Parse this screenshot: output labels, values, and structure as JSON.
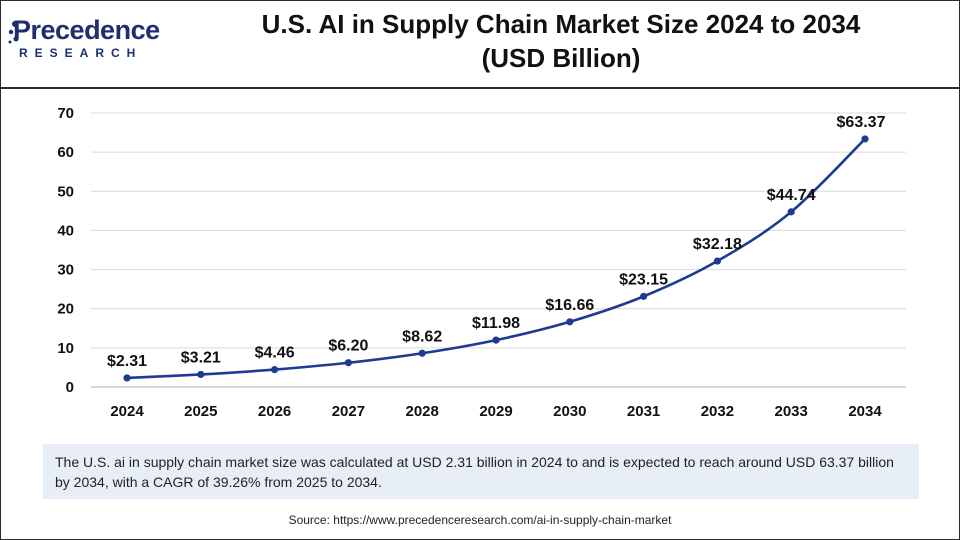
{
  "brand": {
    "name": "Precedence",
    "sub": "RESEARCH",
    "color": "#1d2f6f"
  },
  "header": {
    "title_line1": "U.S. AI in Supply Chain Market Size 2024 to 2034",
    "title_line2": "(USD Billion)"
  },
  "chart_data": {
    "type": "line",
    "title": "U.S. AI in Supply Chain Market Size 2024 to 2034 (USD Billion)",
    "xlabel": "",
    "ylabel": "",
    "categories": [
      "2024",
      "2025",
      "2026",
      "2027",
      "2028",
      "2029",
      "2030",
      "2031",
      "2032",
      "2033",
      "2034"
    ],
    "series": [
      {
        "name": "Market Size (USD Billion)",
        "values": [
          2.31,
          3.21,
          4.46,
          6.2,
          8.62,
          11.98,
          16.66,
          23.15,
          32.18,
          44.74,
          63.37
        ],
        "labels": [
          "$2.31",
          "$3.21",
          "$4.46",
          "$6.20",
          "$8.62",
          "$11.98",
          "$16.66",
          "$23.15",
          "$32.18",
          "$44.74",
          "$63.37"
        ],
        "color": "#1f3a93"
      }
    ],
    "ylim": [
      0,
      70
    ],
    "yticks": [
      0,
      10,
      20,
      30,
      40,
      50,
      60,
      70
    ],
    "grid": true,
    "legend": "none"
  },
  "summary": {
    "text": "The U.S. ai in supply chain market size was calculated at USD 2.31 billion in 2024 to and is expected to reach around USD 63.37 billion by 2034, with a CAGR of 39.26% from 2025 to 2034."
  },
  "source": {
    "text": "Source: https://www.precedenceresearch.com/ai-in-supply-chain-market"
  },
  "colors": {
    "line": "#1f3a93",
    "grid": "#d9d9d9",
    "summary_bg": "#e8eef8"
  }
}
